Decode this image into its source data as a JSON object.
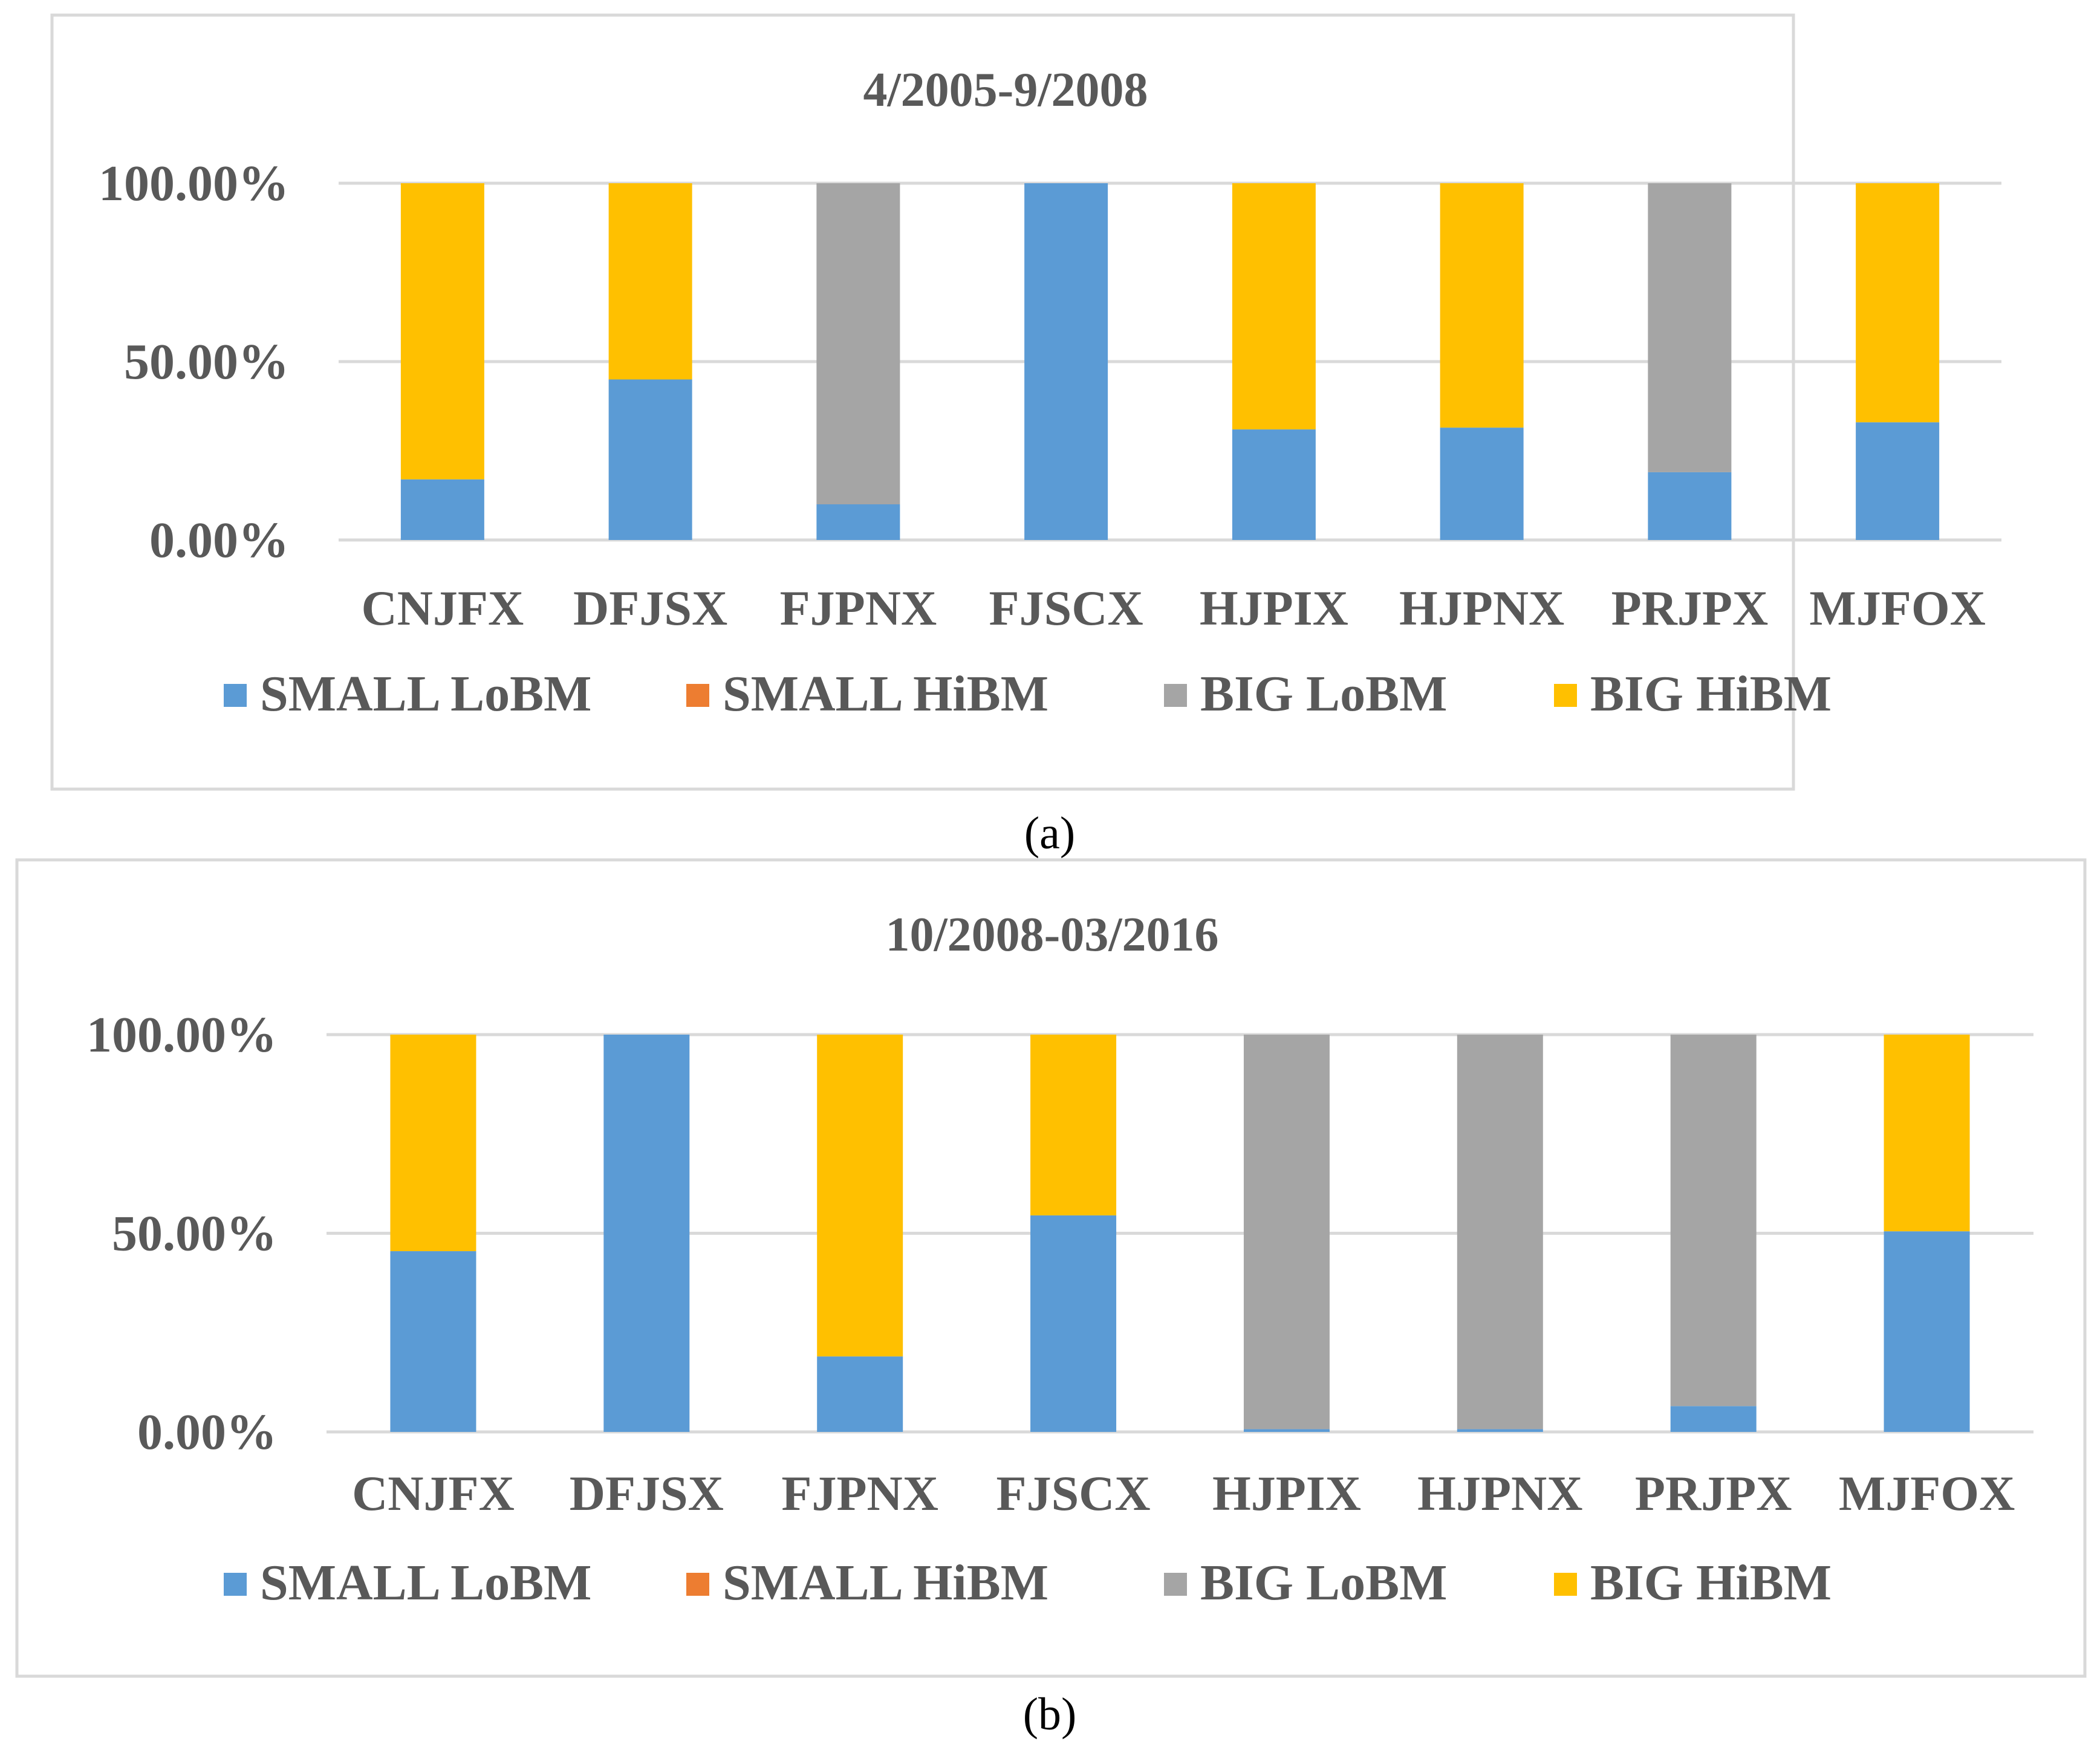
{
  "colors": {
    "SMALL LoBM": "#5B9BD5",
    "SMALL HiBM": "#ED7D31",
    "BIG LoBM": "#A5A5A5",
    "BIG HiBM": "#FFC000",
    "grid": "#D9D9D9",
    "frame": "#D9D9D9",
    "text": "#595959"
  },
  "chart_data": [
    {
      "type": "bar",
      "stacked": true,
      "title": "4/2005-9/2008",
      "caption_text": "a",
      "categories": [
        "CNJFX",
        "DFJSX",
        "FJPNX",
        "FJSCX",
        "HJPIX",
        "HJPNX",
        "PRJPX",
        "MJFOX"
      ],
      "ylim": [
        0,
        100
      ],
      "yticks": [
        0,
        50,
        100
      ],
      "ytick_labels": [
        "0.00%",
        "50.00%",
        "100.00%"
      ],
      "series": [
        {
          "name": "SMALL LoBM",
          "values": [
            17,
            45,
            10,
            100,
            31,
            31.5,
            19,
            33
          ]
        },
        {
          "name": "SMALL HiBM",
          "values": [
            0,
            0,
            0,
            0,
            0,
            0,
            0,
            0
          ]
        },
        {
          "name": "BIG LoBM",
          "values": [
            0,
            0,
            90,
            0,
            0,
            0,
            81,
            0
          ]
        },
        {
          "name": "BIG HiBM",
          "values": [
            83,
            55,
            0,
            0,
            69,
            68.5,
            0,
            67
          ]
        }
      ],
      "legend": [
        "SMALL LoBM",
        "SMALL HiBM",
        "BIG LoBM",
        "BIG HiBM"
      ],
      "legend_position": "bottom"
    },
    {
      "type": "bar",
      "stacked": true,
      "title": "10/2008-03/2016",
      "caption_text": "b",
      "categories": [
        "CNJFX",
        "DFJSX",
        "FJPNX",
        "FJSCX",
        "HJPIX",
        "HJPNX",
        "PRJPX",
        "MJFOX"
      ],
      "ylim": [
        0,
        100
      ],
      "yticks": [
        0,
        50,
        100
      ],
      "ytick_labels": [
        "0.00%",
        "50.00%",
        "100.00%"
      ],
      "series": [
        {
          "name": "SMALL LoBM",
          "values": [
            45.5,
            100,
            19,
            54.5,
            0.7,
            0.7,
            6.5,
            50.5
          ]
        },
        {
          "name": "SMALL HiBM",
          "values": [
            0,
            0,
            0,
            0,
            0,
            0,
            0,
            0
          ]
        },
        {
          "name": "BIG LoBM",
          "values": [
            0,
            0,
            0,
            0,
            99.3,
            99.3,
            93.5,
            0
          ]
        },
        {
          "name": "BIG HiBM",
          "values": [
            54.5,
            0,
            81,
            45.5,
            0,
            0,
            0,
            49.5
          ]
        }
      ],
      "legend": [
        "SMALL LoBM",
        "SMALL HiBM",
        "BIG LoBM",
        "BIG HiBM"
      ],
      "legend_position": "bottom"
    }
  ]
}
